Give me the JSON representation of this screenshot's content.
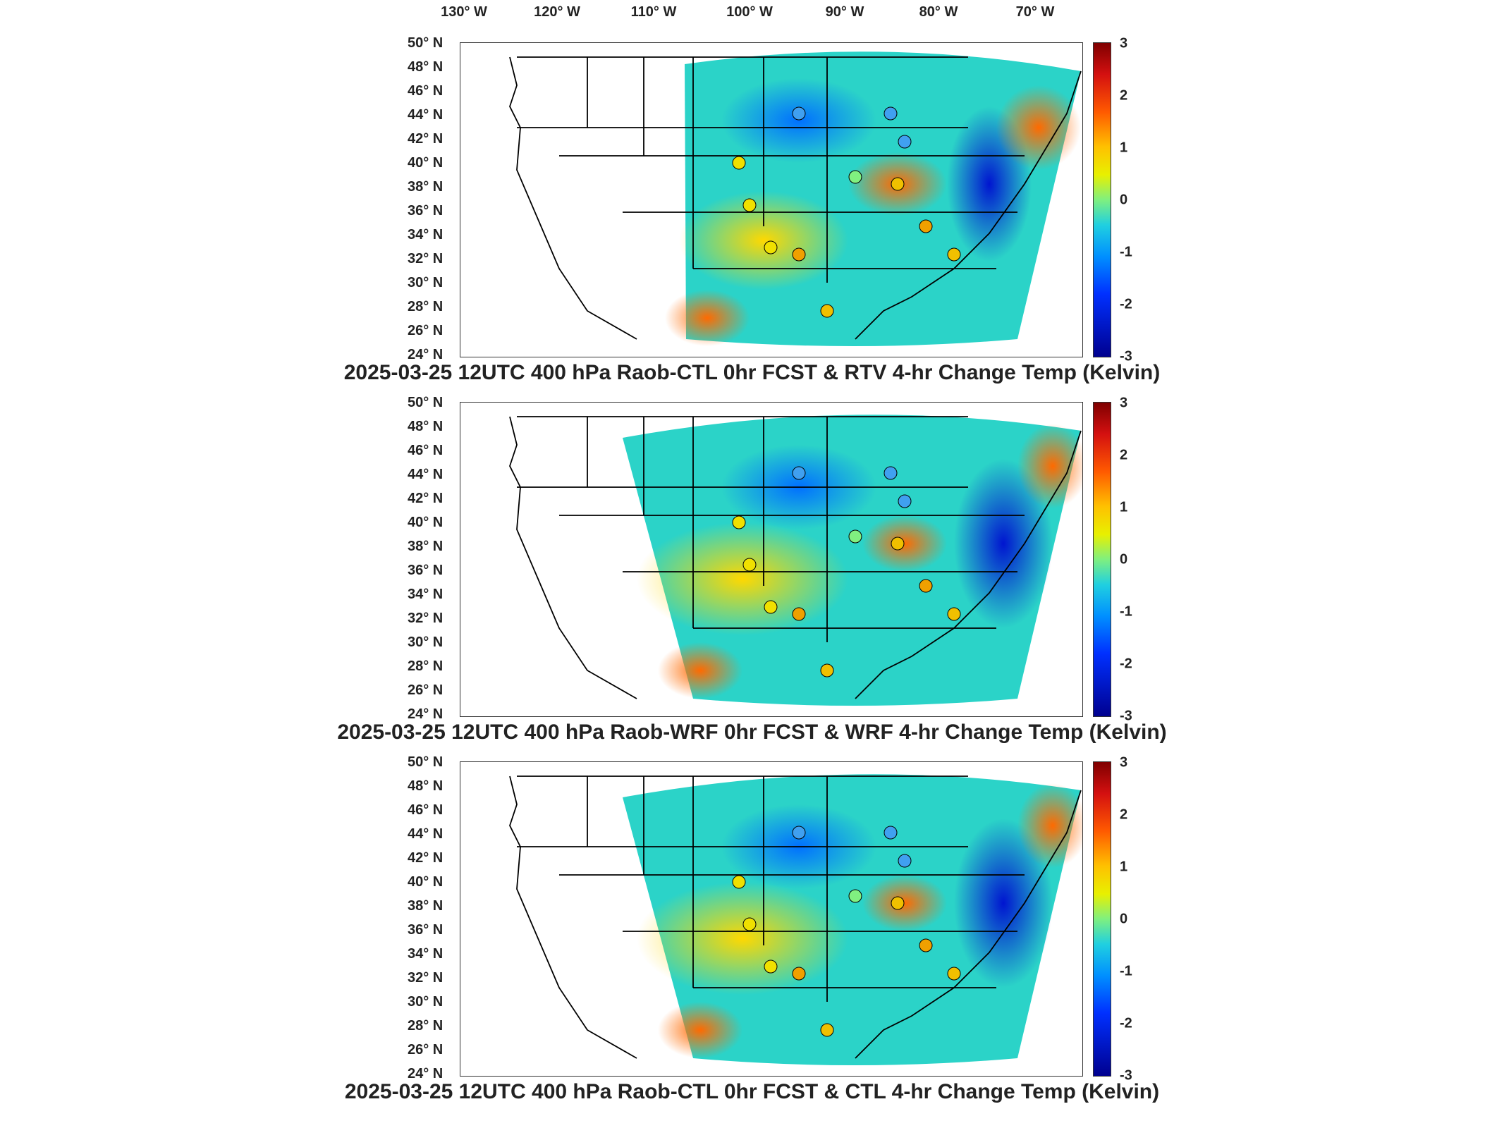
{
  "lon_labels": [
    "130° W",
    "120° W",
    "110° W",
    "100° W",
    "90° W",
    "80° W",
    "70° W"
  ],
  "lat_labels": [
    "50° N",
    "48° N",
    "46° N",
    "44° N",
    "42° N",
    "40° N",
    "38° N",
    "36° N",
    "34° N",
    "32° N",
    "30° N",
    "28° N",
    "26° N",
    "24° N"
  ],
  "colorbar_ticks": [
    "3",
    "2",
    "1",
    "0",
    "-1",
    "-2",
    "-3"
  ],
  "colorbar_colors": {
    "max": "#7f0000",
    "mid": "#7ff07f",
    "min": "#00008f"
  },
  "panels": [
    {
      "title": "2025-03-25 12UTC 400 hPa Raob-CTL 0hr FCST & RTV 4-hr Change Temp (Kelvin)"
    },
    {
      "title": "2025-03-25 12UTC 400 hPa Raob-WRF 0hr FCST & WRF 4-hr Change Temp (Kelvin)"
    },
    {
      "title": "2025-03-25 12UTC 400 hPa Raob-CTL 0hr FCST & CTL 4-hr Change Temp (Kelvin)"
    }
  ]
}
